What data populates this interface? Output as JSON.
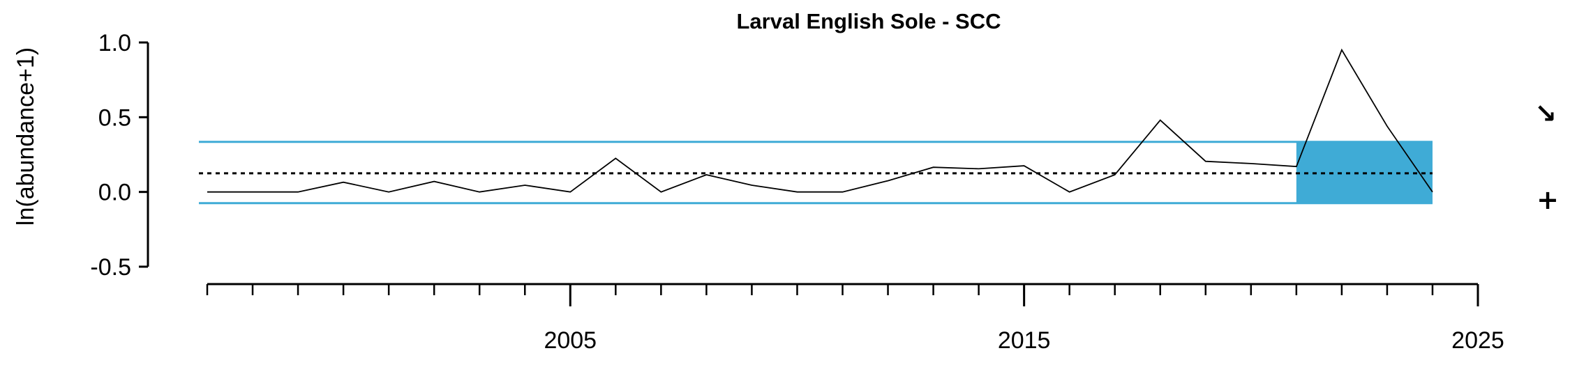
{
  "chart_data": {
    "type": "line",
    "title": "Larval English Sole - SCC",
    "ylabel": "ln(abundance+1)",
    "xlabel": "",
    "ylim": [
      -0.5,
      1.0
    ],
    "xlim": [
      1998,
      2025
    ],
    "y_ticks": [
      {
        "value": 1.0,
        "label": "1.0"
      },
      {
        "value": 0.5,
        "label": "0.5"
      },
      {
        "value": 0.0,
        "label": "0.0"
      },
      {
        "value": -0.5,
        "label": "-0.5"
      }
    ],
    "x_tick_labels": [
      {
        "value": 2005,
        "label": "2005"
      },
      {
        "value": 2015,
        "label": "2015"
      },
      {
        "value": 2025,
        "label": "2025"
      }
    ],
    "x_minor_ticks": [
      1997,
      1998,
      1999,
      2000,
      2001,
      2002,
      2003,
      2004,
      2005,
      2006,
      2007,
      2008,
      2009,
      2010,
      2011,
      2012,
      2013,
      2014,
      2015,
      2016,
      2017,
      2018,
      2019,
      2020,
      2021,
      2022,
      2023,
      2024,
      2025
    ],
    "series": [
      {
        "x": [
          1997,
          1998,
          1999,
          2000,
          2001,
          2002,
          2003,
          2004,
          2005,
          2006,
          2007,
          2008,
          2009,
          2010,
          2011,
          2012,
          2013,
          2014,
          2015,
          2016,
          2017,
          2018,
          2019,
          2020,
          2021,
          2022,
          2023,
          2024
        ],
        "values": [
          0.0,
          0.0,
          0.0,
          0.065,
          0.0,
          0.07,
          0.0,
          0.045,
          0.0,
          0.225,
          0.0,
          0.115,
          0.045,
          0.0,
          0.0,
          0.075,
          0.165,
          0.155,
          0.175,
          0.0,
          0.115,
          0.48,
          0.205,
          0.19,
          0.17,
          0.95,
          0.44,
          0.0
        ],
        "color": "#000000"
      }
    ],
    "mean": 0.125,
    "sd_upper": 0.335,
    "sd_lower": -0.075,
    "recent_window": [
      2021,
      2024
    ],
    "band_color": "#3fabd6",
    "trend_symbol": "↘",
    "mean_symbol": "+",
    "grid": false,
    "legend": "none"
  }
}
